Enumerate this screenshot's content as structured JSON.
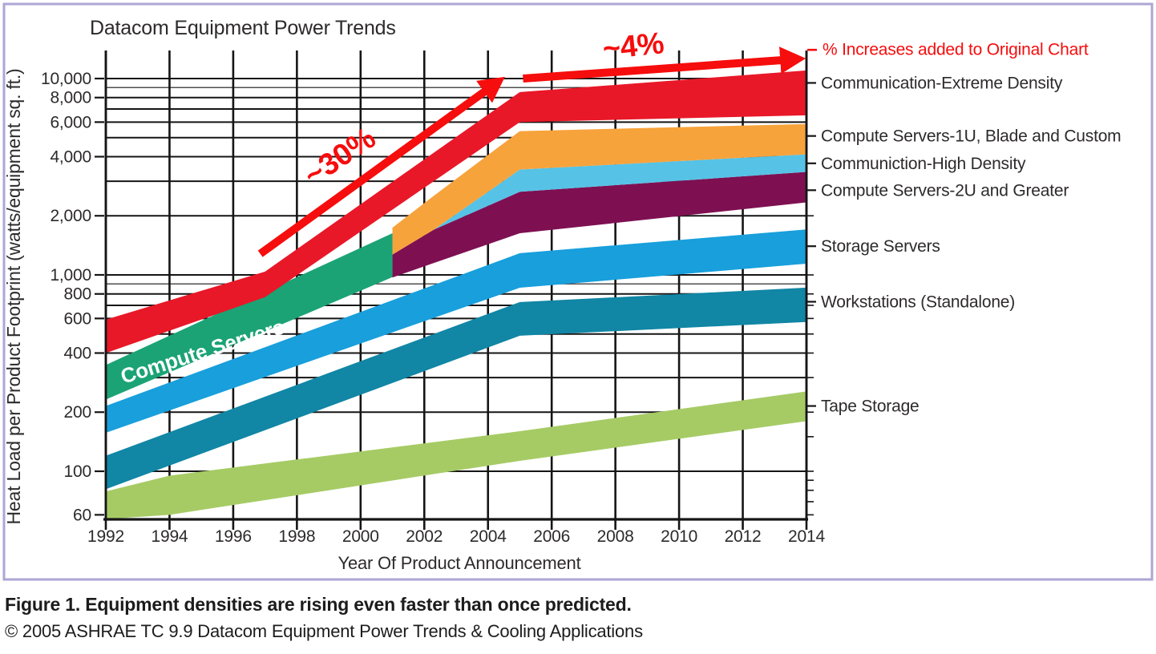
{
  "title": "Datacom Equipment Power Trends",
  "y_axis": {
    "label": "Heat Load per Product Footprint (watts/equipment sq. ft.)",
    "ticks": [
      {
        "label": "10,000",
        "value": 10000
      },
      {
        "label": "8,000",
        "value": 8000
      },
      {
        "label": "6,000",
        "value": 6000
      },
      {
        "label": "4,000",
        "value": 4000
      },
      {
        "label": "2,000",
        "value": 2000
      },
      {
        "label": "1,000",
        "value": 1000
      },
      {
        "label": "800",
        "value": 800
      },
      {
        "label": "600",
        "value": 600
      },
      {
        "label": "400",
        "value": 400
      },
      {
        "label": "200",
        "value": 200
      },
      {
        "label": "100",
        "value": 100
      },
      {
        "label": "60",
        "value": 60
      }
    ]
  },
  "x_axis": {
    "label": "Year Of Product Announcement",
    "ticks": [
      1992,
      1994,
      1996,
      1998,
      2000,
      2002,
      2004,
      2006,
      2008,
      2010,
      2012,
      2014
    ]
  },
  "grid": {
    "h_values": [
      10000,
      9000,
      8000,
      7000,
      6000,
      5000,
      4000,
      3000,
      2000,
      1000,
      900,
      800,
      700,
      600,
      500,
      400,
      300,
      200,
      100
    ],
    "thin_values": [
      9000,
      900
    ],
    "v_years": [
      1992,
      1994,
      1996,
      1998,
      2000,
      2002,
      2004,
      2006,
      2008,
      2010,
      2012,
      2014
    ],
    "right_minor_stub_values": [
      2000,
      1000,
      800,
      700,
      600,
      500,
      400,
      300,
      200,
      150,
      100,
      90,
      80,
      70,
      60
    ]
  },
  "legend_right": [
    {
      "label": "Communication-Extreme Density",
      "value": 9500
    },
    {
      "label": "Compute Servers-1U, Blade and Custom",
      "value": 5100
    },
    {
      "label": "Communiction-High Density",
      "value": 3700
    },
    {
      "label": "Compute Servers-2U and Greater",
      "value": 2700
    },
    {
      "label": "Storage Servers",
      "value": 1400
    },
    {
      "label": "Workstations (Standalone)",
      "value": 730
    },
    {
      "label": "Tape Storage",
      "value": 215
    }
  ],
  "band_label": {
    "text": "Compute Servers"
  },
  "annotations": {
    "rise_label": "~30%",
    "flat_label": "~4%",
    "note": "% Increases added to Original Chart",
    "note_value": 14000,
    "color": "#f60d0d",
    "arrows": [
      {
        "name": "rise-arrow",
        "from": {
          "year": 1996.85,
          "value": 1280
        },
        "to": {
          "year": 2003.9,
          "value": 8600
        }
      },
      {
        "name": "flat-arrow",
        "from": {
          "year": 2005.1,
          "value": 10000
        },
        "to": {
          "year": 2013.2,
          "value": 12400
        }
      }
    ]
  },
  "caption": {
    "title": "Figure 1. Equipment densities are rising even faster than once predicted.",
    "credit": "© 2005 ASHRAE TC 9.9 Datacom Equipment Power Trends & Cooling Applications"
  },
  "colors": {
    "border": "#aca6d4",
    "grid": "#151515",
    "text": "#2d2a2b",
    "annotation": "#f60d0d"
  },
  "chart_data": {
    "type": "area",
    "title": "Datacom Equipment Power Trends",
    "xlabel": "Year Of Product Announcement",
    "ylabel": "Heat Load per Product Footprint (watts/equipment sq. ft.)",
    "y_scale": "log",
    "xlim": [
      1992,
      2014
    ],
    "ylim": [
      58,
      14000
    ],
    "grid": true,
    "legend_position": "right",
    "units": "watts per equipment sq. ft.",
    "series": [
      {
        "name": "Compute Servers-2U and Greater",
        "color": "#7e1052",
        "points": [
          {
            "year": 2001,
            "low": 970,
            "high": 1270
          },
          {
            "year": 2002.3,
            "low": 1150,
            "high": 1700
          },
          {
            "year": 2005,
            "low": 1630,
            "high": 2650
          },
          {
            "year": 2014,
            "low": 2340,
            "high": 3345
          }
        ]
      },
      {
        "name": "Communiction-High Density",
        "color": "#56c2e6",
        "points": [
          {
            "year": 2002.3,
            "low": 1700,
            "high": 1700
          },
          {
            "year": 2005,
            "low": 2650,
            "high": 3440
          },
          {
            "year": 2014,
            "low": 3345,
            "high": 4110
          }
        ]
      },
      {
        "name": "Compute Servers-1U, Blade and Custom",
        "color": "#f7a33c",
        "points": [
          {
            "year": 2001,
            "low": 1270,
            "high": 1740
          },
          {
            "year": 2002.3,
            "low": 1700,
            "high": 2530
          },
          {
            "year": 2005,
            "low": 3440,
            "high": 5400
          },
          {
            "year": 2014,
            "low": 4110,
            "high": 5865
          }
        ]
      },
      {
        "name": "Compute Servers",
        "color": "#1ba376",
        "points": [
          {
            "year": 1992,
            "low": 232,
            "high": 348
          },
          {
            "year": 2001,
            "low": 975,
            "high": 1630
          }
        ]
      },
      {
        "name": "Communication-Extreme Density",
        "color": "#e81828",
        "points": [
          {
            "year": 1992,
            "low": 400,
            "high": 592
          },
          {
            "year": 1997,
            "low": 770,
            "high": 1040
          },
          {
            "year": 2005,
            "low": 6000,
            "high": 8530
          },
          {
            "year": 2014,
            "low": 6500,
            "high": 11000
          }
        ]
      },
      {
        "name": "Storage Servers",
        "color": "#189fdc",
        "points": [
          {
            "year": 1992,
            "low": 157,
            "high": 215
          },
          {
            "year": 2005,
            "low": 860,
            "high": 1290
          },
          {
            "year": 2014,
            "low": 1140,
            "high": 1705
          }
        ]
      },
      {
        "name": "Workstations (Standalone)",
        "color": "#1186a5",
        "points": [
          {
            "year": 1992,
            "low": 81,
            "high": 120
          },
          {
            "year": 2005,
            "low": 490,
            "high": 727
          },
          {
            "year": 2014,
            "low": 576,
            "high": 861
          }
        ]
      },
      {
        "name": "Tape Storage",
        "color": "#a6cb65",
        "points": [
          {
            "year": 1992,
            "low": 57,
            "high": 79
          },
          {
            "year": 1994,
            "low": 60,
            "high": 95
          },
          {
            "year": 2005,
            "low": 113,
            "high": 160
          },
          {
            "year": 2014,
            "low": 180,
            "high": 255
          }
        ]
      }
    ]
  }
}
